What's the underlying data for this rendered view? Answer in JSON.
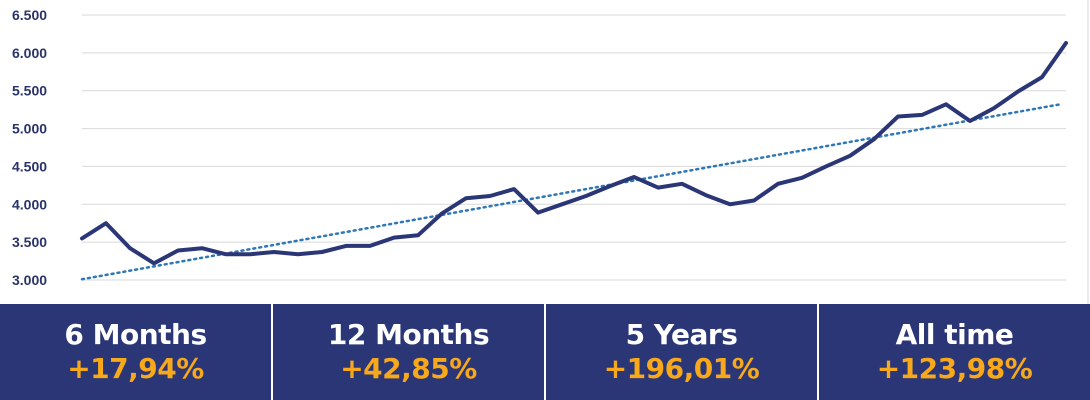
{
  "chart_data": {
    "type": "line",
    "title": "",
    "xlabel": "",
    "ylabel": "",
    "ylim": [
      3000,
      6500
    ],
    "yticks": [
      {
        "value": 6500,
        "label": "6.500"
      },
      {
        "value": 6000,
        "label": "6.000"
      },
      {
        "value": 5500,
        "label": "5.500"
      },
      {
        "value": 5000,
        "label": "5.000"
      },
      {
        "value": 4500,
        "label": "4.500"
      },
      {
        "value": 4000,
        "label": "4.000"
      },
      {
        "value": 3500,
        "label": "3.500"
      },
      {
        "value": 3000,
        "label": "3.000"
      }
    ],
    "grid": true,
    "series": [
      {
        "values": [
          3550,
          3750,
          3420,
          3220,
          3390,
          3420,
          3340,
          3340,
          3370,
          3340,
          3370,
          3450,
          3450,
          3560,
          3590,
          3880,
          4080,
          4110,
          4200,
          3890,
          4000,
          4110,
          4240,
          4360,
          4220,
          4270,
          4120,
          4000,
          4050,
          4270,
          4350,
          4500,
          4640,
          4860,
          5160,
          5180,
          5320,
          5100,
          5270,
          5490,
          5680,
          6130
        ]
      }
    ],
    "trendline": {
      "style": "dotted",
      "start": 3010,
      "end": 5320
    },
    "colors": {
      "line": "#2b3677",
      "trend": "#2f78b7",
      "grid": "#d9d9d9",
      "axis": "#2a3468"
    }
  },
  "stats": [
    {
      "label": "6 Months",
      "value": "+17,94%"
    },
    {
      "label": "12 Months",
      "value": "+42,85%"
    },
    {
      "label": "5 Years",
      "value": "+196,01%"
    },
    {
      "label": "All time",
      "value": "+123,98%"
    }
  ]
}
